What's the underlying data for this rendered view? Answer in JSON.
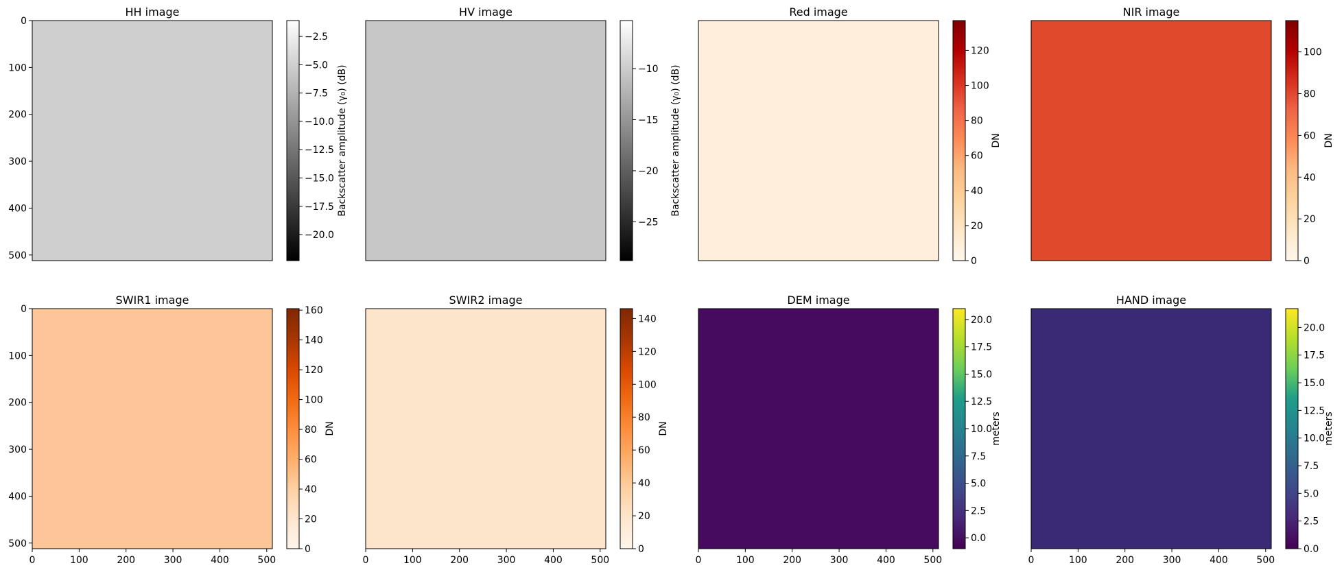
{
  "chart_data": [
    {
      "type": "heatmap",
      "title": "HH image",
      "cmap": "gray",
      "colorbar_label": "Backscatter amplitude (γ₀) (dB)",
      "xticks": [],
      "yticks": [
        0,
        100,
        200,
        300,
        400,
        500
      ],
      "xlim": [
        0,
        512
      ],
      "ylim": [
        512,
        0
      ],
      "clim": [
        -22.3,
        -1.1
      ],
      "cbar_ticks": [
        -2.5,
        -5.0,
        -7.5,
        -10.0,
        -12.5,
        -15.0,
        -17.5,
        -20.0
      ],
      "cbar_tick_labels": [
        "−2.5",
        "−5.0",
        "−7.5",
        "−10.0",
        "−12.5",
        "−15.0",
        "−17.5",
        "−20.0"
      ]
    },
    {
      "type": "heatmap",
      "title": "HV image",
      "cmap": "gray",
      "colorbar_label": "Backscatter amplitude (γ₀) (dB)",
      "xticks": [],
      "yticks": [],
      "xlim": [
        0,
        512
      ],
      "ylim": [
        512,
        0
      ],
      "clim": [
        -28.8,
        -5.3
      ],
      "cbar_ticks": [
        -10,
        -15,
        -20,
        -25
      ],
      "cbar_tick_labels": [
        "−10",
        "−15",
        "−20",
        "−25"
      ]
    },
    {
      "type": "heatmap",
      "title": "Red image",
      "cmap": "OrRd",
      "colorbar_label": "DN",
      "xticks": [],
      "yticks": [],
      "xlim": [
        0,
        512
      ],
      "ylim": [
        512,
        0
      ],
      "clim": [
        0,
        137
      ],
      "cbar_ticks": [
        0,
        20,
        40,
        60,
        80,
        100,
        120
      ],
      "cbar_tick_labels": [
        "0",
        "20",
        "40",
        "60",
        "80",
        "100",
        "120"
      ]
    },
    {
      "type": "heatmap",
      "title": "NIR image",
      "cmap": "OrRd",
      "colorbar_label": "DN",
      "xticks": [],
      "yticks": [],
      "xlim": [
        0,
        512
      ],
      "ylim": [
        512,
        0
      ],
      "clim": [
        0,
        115
      ],
      "cbar_ticks": [
        0,
        20,
        40,
        60,
        80,
        100
      ],
      "cbar_tick_labels": [
        "0",
        "20",
        "40",
        "60",
        "80",
        "100"
      ]
    },
    {
      "type": "heatmap",
      "title": "SWIR1 image",
      "cmap": "Oranges",
      "colorbar_label": "DN",
      "xticks": [
        0,
        100,
        200,
        300,
        400,
        500
      ],
      "yticks": [
        0,
        100,
        200,
        300,
        400,
        500
      ],
      "xlim": [
        0,
        512
      ],
      "ylim": [
        512,
        0
      ],
      "clim": [
        0,
        161
      ],
      "cbar_ticks": [
        0,
        20,
        40,
        60,
        80,
        100,
        120,
        140,
        160
      ],
      "cbar_tick_labels": [
        "0",
        "20",
        "40",
        "60",
        "80",
        "100",
        "120",
        "140",
        "160"
      ]
    },
    {
      "type": "heatmap",
      "title": "SWIR2 image",
      "cmap": "Oranges",
      "colorbar_label": "DN",
      "xticks": [
        0,
        100,
        200,
        300,
        400,
        500
      ],
      "yticks": [],
      "xlim": [
        0,
        512
      ],
      "ylim": [
        512,
        0
      ],
      "clim": [
        0,
        146
      ],
      "cbar_ticks": [
        0,
        20,
        40,
        60,
        80,
        100,
        120,
        140
      ],
      "cbar_tick_labels": [
        "0",
        "20",
        "40",
        "60",
        "80",
        "100",
        "120",
        "140"
      ]
    },
    {
      "type": "heatmap",
      "title": "DEM image",
      "cmap": "viridis",
      "colorbar_label": "meters",
      "xticks": [
        0,
        100,
        200,
        300,
        400,
        500
      ],
      "yticks": [],
      "xlim": [
        0,
        512
      ],
      "ylim": [
        512,
        0
      ],
      "clim": [
        -1.0,
        21.0
      ],
      "cbar_ticks": [
        0.0,
        2.5,
        5.0,
        7.5,
        10.0,
        12.5,
        15.0,
        17.5,
        20.0
      ],
      "cbar_tick_labels": [
        "0.0",
        "2.5",
        "5.0",
        "7.5",
        "10.0",
        "12.5",
        "15.0",
        "17.5",
        "20.0"
      ]
    },
    {
      "type": "heatmap",
      "title": "HAND image",
      "cmap": "viridis",
      "colorbar_label": "meters",
      "xticks": [
        0,
        100,
        200,
        300,
        400,
        500
      ],
      "yticks": [],
      "xlim": [
        0,
        512
      ],
      "ylim": [
        512,
        0
      ],
      "clim": [
        0.0,
        21.7
      ],
      "cbar_ticks": [
        0.0,
        2.5,
        5.0,
        7.5,
        10.0,
        12.5,
        15.0,
        17.5,
        20.0
      ],
      "cbar_tick_labels": [
        "0.0",
        "2.5",
        "5.0",
        "7.5",
        "10.0",
        "12.5",
        "15.0",
        "17.5",
        "20.0"
      ]
    }
  ],
  "colormaps": {
    "gray": [
      "#000000",
      "#ffffff"
    ],
    "OrRd": [
      "#fff7ec",
      "#fee8c8",
      "#fdd49e",
      "#fdbb84",
      "#fc8d59",
      "#ef6548",
      "#d7301f",
      "#b30000",
      "#7f0000"
    ],
    "Oranges": [
      "#fff5eb",
      "#fee6ce",
      "#fdd0a2",
      "#fdae6b",
      "#fd8d3c",
      "#f16913",
      "#d94801",
      "#a63603",
      "#7f2704"
    ],
    "viridis": [
      "#440154",
      "#482777",
      "#3f4a8a",
      "#31678e",
      "#26838f",
      "#1f9d8a",
      "#6cce5a",
      "#b6de2b",
      "#fee825"
    ]
  },
  "panel_fills": [
    "#cfcfcf",
    "#c7c7c7",
    "#feeedb",
    "#e0492c",
    "#fcc699",
    "#fde5cb",
    "#460b5f",
    "#3a2a75"
  ]
}
